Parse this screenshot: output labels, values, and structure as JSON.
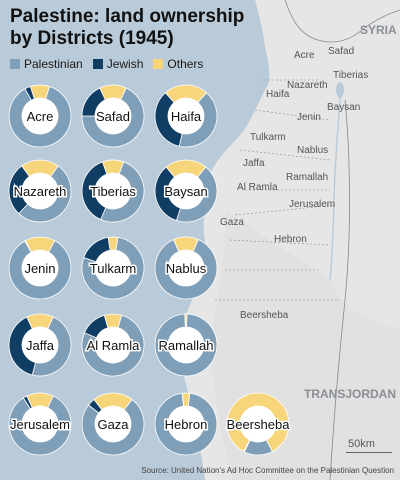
{
  "title": "Palestine: land ownership by Districts (1945)",
  "legend": {
    "items": [
      {
        "label": "Palestinian",
        "color": "#7f9fb8"
      },
      {
        "label": "Jewish",
        "color": "#0f3d64"
      },
      {
        "label": "Others",
        "color": "#f7d57a"
      }
    ]
  },
  "map_labels": {
    "countries": [
      "SYRIA",
      "TRANSJORDAN"
    ],
    "places": [
      "Acre",
      "Safad",
      "Tiberias",
      "Nazareth",
      "Haifa",
      "Baysan",
      "Jenin",
      "Tulkarm",
      "Nablus",
      "Jaffa",
      "Ramallah",
      "Al Ramla",
      "Jerusalem",
      "Gaza",
      "Hebron",
      "Beersheba"
    ]
  },
  "scale": {
    "label": "50km"
  },
  "source": "Source: United Nation's Ad Hoc Committee on the Palestinian Question",
  "chart_data": {
    "type": "donut",
    "series_names": [
      "Palestinian",
      "Jewish",
      "Others"
    ],
    "districts": [
      {
        "name": "Acre",
        "values": [
          87,
          3,
          10
        ]
      },
      {
        "name": "Safad",
        "values": [
          68,
          18,
          14
        ]
      },
      {
        "name": "Haifa",
        "values": [
          42,
          35,
          23
        ]
      },
      {
        "name": "Nazareth",
        "values": [
          52,
          28,
          20
        ]
      },
      {
        "name": "Tiberias",
        "values": [
          51,
          38,
          11
        ]
      },
      {
        "name": "Baysan",
        "values": [
          44,
          34,
          22
        ]
      },
      {
        "name": "Jenin",
        "values": [
          84,
          0.3,
          15.7
        ]
      },
      {
        "name": "Tulkarm",
        "values": [
          78,
          17,
          5
        ]
      },
      {
        "name": "Nablus",
        "values": [
          87,
          0.1,
          12.9
        ]
      },
      {
        "name": "Jaffa",
        "values": [
          47,
          39,
          14
        ]
      },
      {
        "name": "Al Ramla",
        "values": [
          77,
          14,
          9
        ]
      },
      {
        "name": "Ramallah",
        "values": [
          99,
          0.1,
          0.9
        ]
      },
      {
        "name": "Jerusalem",
        "values": [
          84,
          2,
          14
        ]
      },
      {
        "name": "Gaza",
        "values": [
          75,
          4,
          21
        ]
      },
      {
        "name": "Hebron",
        "values": [
          96,
          0.1,
          3.9
        ]
      },
      {
        "name": "Beersheba",
        "values": [
          15,
          0.4,
          84.6
        ]
      }
    ]
  }
}
